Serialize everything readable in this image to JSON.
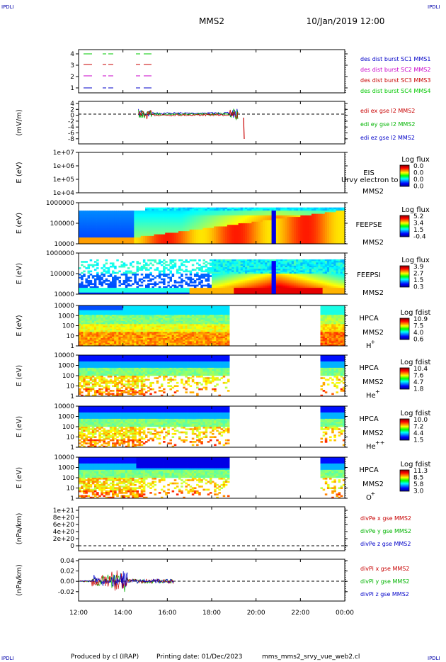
{
  "header": {
    "corner_mark": "IPDLI",
    "spacecraft": "MMS2",
    "datetime": "10/Jan/2019 12:00"
  },
  "footer": {
    "produced_by": "Produced by cl (IRAP)",
    "printing_date": "Printing date: 01/Dec/2023",
    "filename": "mms_mms2_srvy_vue_web2.cl"
  },
  "x_axis": {
    "tick_labels": [
      "12:00",
      "14:00",
      "16:00",
      "18:00",
      "20:00",
      "22:00",
      "00:00"
    ]
  },
  "chart_data": [
    {
      "type": "line",
      "id": "burst",
      "yticks": [
        "4",
        "3",
        "2",
        "1"
      ],
      "legend": [
        {
          "text": "des dist burst SC1 MMS1",
          "color": "#0000c8"
        },
        {
          "text": "des dist burst SC2 MMS2",
          "color": "#c800c8"
        },
        {
          "text": "des dist burst SC3 MMS3",
          "color": "#c80000"
        },
        {
          "text": "des dist burst SC4 MMS4",
          "color": "#00c800"
        }
      ]
    },
    {
      "type": "line",
      "id": "edi",
      "ylabel": "(mV/m)",
      "yticks": [
        "4",
        "2",
        "0",
        "-2",
        "-4",
        "-6",
        "-8"
      ],
      "legend": [
        {
          "text": "edi ex gse l2 MMS2",
          "color": "#c80000"
        },
        {
          "text": "edi ey gse l2 MMS2",
          "color": "#00b400"
        },
        {
          "text": "edi ez gse l2 MMS2",
          "color": "#0000c8"
        }
      ]
    },
    {
      "type": "heatmap",
      "id": "eis",
      "ylabel": "E (eV)",
      "yticks": [
        "1e+07",
        "1e+06",
        "1e+05",
        "1e+04"
      ],
      "name": "EIS",
      "name2": "MMS2",
      "overlay_text": "Urvy electron to",
      "cbar_title": "Log flux",
      "cbar_ticks": [
        "0.0",
        "0.0",
        "0.0",
        "0.0"
      ]
    },
    {
      "type": "heatmap",
      "id": "feepse",
      "ylabel": "E (eV)",
      "yticks": [
        "1000000",
        "100000",
        "10000"
      ],
      "name": "FEEPSE",
      "name2": "MMS2",
      "cbar_title": "Log flux",
      "cbar_ticks": [
        "5.2",
        "3.4",
        "1.5",
        "-0.4"
      ]
    },
    {
      "type": "heatmap",
      "id": "feepsi",
      "ylabel": "E (eV)",
      "yticks": [
        "1000000",
        "100000",
        "10000"
      ],
      "name": "FEEPSI",
      "name2": "MMS2",
      "cbar_title": "Log flux",
      "cbar_ticks": [
        "3.9",
        "2.7",
        "1.5",
        "0.3"
      ]
    },
    {
      "type": "heatmap",
      "id": "hpca_h",
      "ylabel": "E (eV)",
      "yticks": [
        "10000",
        "1000",
        "100",
        "10",
        "1"
      ],
      "name": "HPCA",
      "name2": "MMS2",
      "species": "H",
      "species_sup": "+",
      "cbar_title": "Log fdist",
      "cbar_ticks": [
        "10.9",
        "7.5",
        "4.0",
        "0.6"
      ]
    },
    {
      "type": "heatmap",
      "id": "hpca_he",
      "ylabel": "E (eV)",
      "yticks": [
        "10000",
        "1000",
        "100",
        "10",
        "1"
      ],
      "name": "HPCA",
      "name2": "MMS2",
      "species": "He",
      "species_sup": "+",
      "cbar_title": "Log fdist",
      "cbar_ticks": [
        "10.4",
        "7.6",
        "4.7",
        "1.8"
      ]
    },
    {
      "type": "heatmap",
      "id": "hpca_hepp",
      "ylabel": "E (eV)",
      "yticks": [
        "10000",
        "1000",
        "100",
        "10",
        "1"
      ],
      "name": "HPCA",
      "name2": "MMS2",
      "species": "He",
      "species_sup": "++",
      "cbar_title": "Log fdist",
      "cbar_ticks": [
        "10.0",
        "7.2",
        "4.4",
        "1.5"
      ]
    },
    {
      "type": "heatmap",
      "id": "hpca_o",
      "ylabel": "E (eV)",
      "yticks": [
        "10000",
        "1000",
        "100",
        "10",
        "1"
      ],
      "name": "HPCA",
      "name2": "MMS2",
      "species": "O",
      "species_sup": "+",
      "cbar_title": "Log fdist",
      "cbar_ticks": [
        "11.3",
        "8.5",
        "5.8",
        "3.0"
      ]
    },
    {
      "type": "line",
      "id": "divpe",
      "ylabel": "(nPa/km)",
      "yticks": [
        "1e+21",
        "8e+20",
        "6e+20",
        "4e+20",
        "2e+20",
        "0"
      ],
      "legend": [
        {
          "text": "divPe x gse MMS2",
          "color": "#c80000"
        },
        {
          "text": "divPe y gse MMS2",
          "color": "#00b400"
        },
        {
          "text": "divPe z gse MMS2",
          "color": "#0000c8"
        }
      ]
    },
    {
      "type": "line",
      "id": "divpi",
      "ylabel": "(nPa/km)",
      "yticks": [
        "0.04",
        "0.02",
        "0.00",
        "-0.02"
      ],
      "legend": [
        {
          "text": "divPi x gse MMS2",
          "color": "#c80000"
        },
        {
          "text": "divPi y gse MMS2",
          "color": "#00b400"
        },
        {
          "text": "divPi z gse MMS2",
          "color": "#0000c8"
        }
      ]
    }
  ]
}
